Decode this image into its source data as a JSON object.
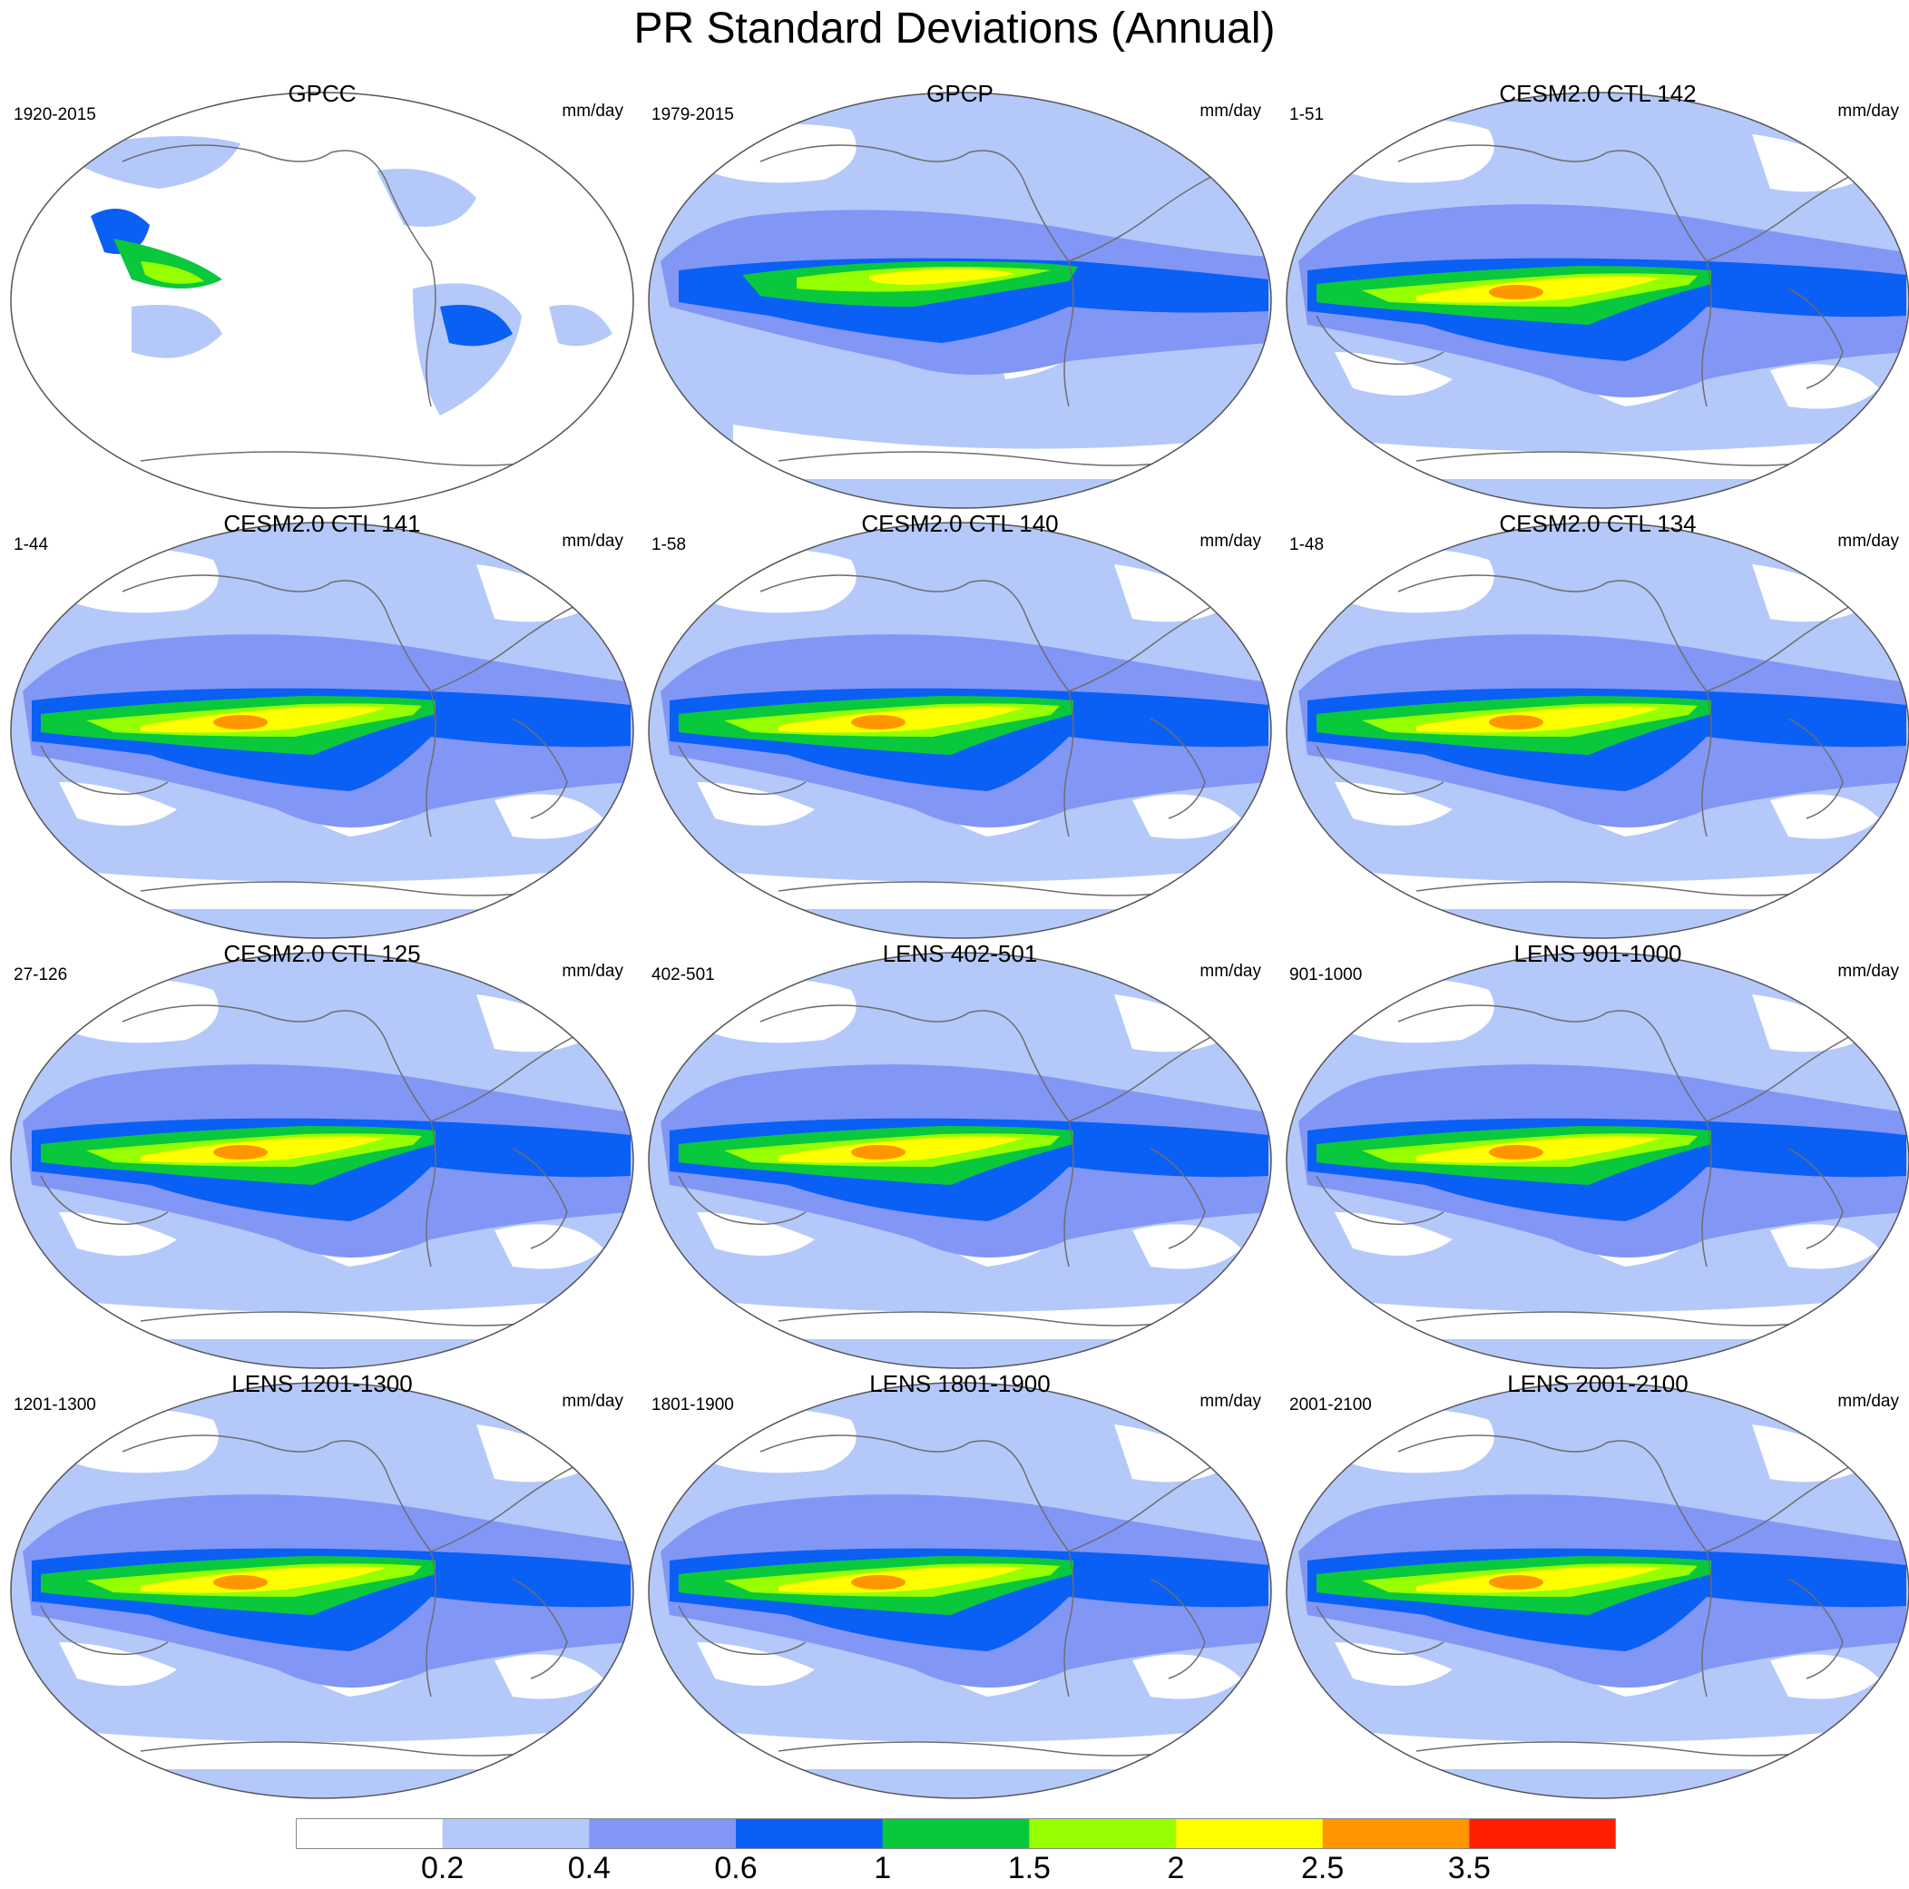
{
  "title": "PR Standard Deviations (Annual)",
  "colors": {
    "white": "#ffffff",
    "pale_blue": "#b4c8fa",
    "periwinkle": "#8296f5",
    "blue": "#0a5ff5",
    "green": "#0ac83c",
    "lime": "#96ff00",
    "yellow": "#ffff00",
    "orange": "#ff9600",
    "red": "#ff1e00",
    "coast": "#6e6e6e"
  },
  "colorbar": {
    "colors": [
      "#ffffff",
      "#b4c8fa",
      "#8296f5",
      "#0a5ff5",
      "#0ac83c",
      "#96ff00",
      "#ffff00",
      "#ff9600",
      "#ff1e00"
    ],
    "labels": [
      "0.2",
      "0.4",
      "0.6",
      "1",
      "1.5",
      "2",
      "2.5",
      "3.5"
    ]
  },
  "panels": [
    {
      "title": "GPCC",
      "period": "1920-2015",
      "unit": "mm/day",
      "style": "gpcc"
    },
    {
      "title": "GPCP",
      "period": "1979-2015",
      "unit": "mm/day",
      "style": "gpcp"
    },
    {
      "title": "CESM2.0 CTL 142",
      "period": "1-51",
      "unit": "mm/day",
      "style": "model"
    },
    {
      "title": "CESM2.0 CTL 141",
      "period": "1-44",
      "unit": "mm/day",
      "style": "model"
    },
    {
      "title": "CESM2.0 CTL 140",
      "period": "1-58",
      "unit": "mm/day",
      "style": "model"
    },
    {
      "title": "CESM2.0 CTL 134",
      "period": "1-48",
      "unit": "mm/day",
      "style": "model"
    },
    {
      "title": "CESM2.0 CTL 125",
      "period": "27-126",
      "unit": "mm/day",
      "style": "model"
    },
    {
      "title": "LENS 402-501",
      "period": "402-501",
      "unit": "mm/day",
      "style": "model"
    },
    {
      "title": "LENS 901-1000",
      "period": "901-1000",
      "unit": "mm/day",
      "style": "model"
    },
    {
      "title": "LENS 1201-1300",
      "period": "1201-1300",
      "unit": "mm/day",
      "style": "model"
    },
    {
      "title": "LENS 1801-1900",
      "period": "1801-1900",
      "unit": "mm/day",
      "style": "model"
    },
    {
      "title": "LENS 2001-2100",
      "period": "2001-2100",
      "unit": "mm/day",
      "style": "model"
    }
  ]
}
